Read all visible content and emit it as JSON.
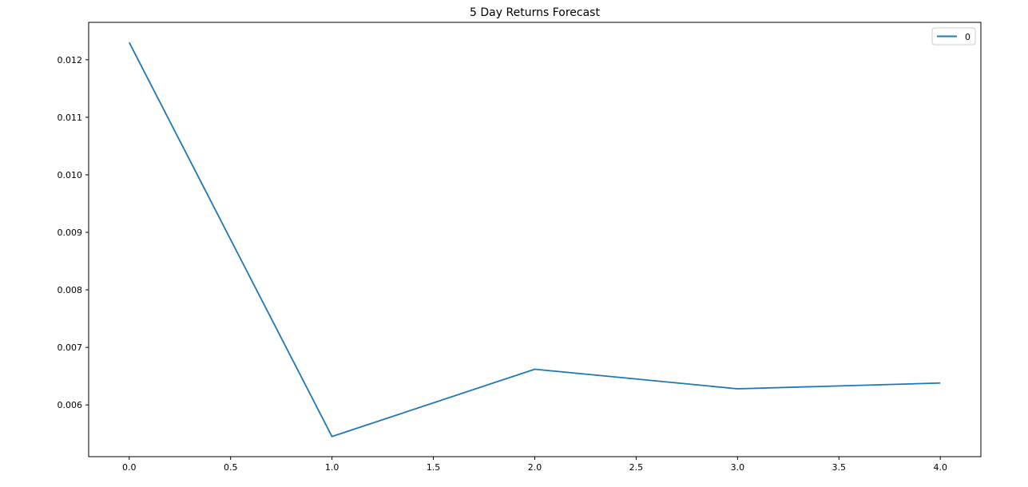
{
  "chart_data": {
    "type": "line",
    "title": "5 Day Returns Forecast",
    "xlabel": "",
    "ylabel": "",
    "x": [
      0,
      1,
      2,
      3,
      4
    ],
    "series": [
      {
        "name": "0",
        "values": [
          0.0123,
          0.00545,
          0.00662,
          0.00628,
          0.00638
        ],
        "color": "#1f77b4"
      }
    ],
    "xlim": [
      -0.2,
      4.2
    ],
    "ylim": [
      0.0051,
      0.01265
    ],
    "x_ticks": [
      0.0,
      0.5,
      1.0,
      1.5,
      2.0,
      2.5,
      3.0,
      3.5,
      4.0
    ],
    "x_tick_labels": [
      "0.0",
      "0.5",
      "1.0",
      "1.5",
      "2.0",
      "2.5",
      "3.0",
      "3.5",
      "4.0"
    ],
    "y_ticks": [
      0.006,
      0.007,
      0.008,
      0.009,
      0.01,
      0.011,
      0.012
    ],
    "y_tick_labels": [
      "0.006",
      "0.007",
      "0.008",
      "0.009",
      "0.010",
      "0.011",
      "0.012"
    ],
    "grid": false,
    "legend": "top-right"
  }
}
